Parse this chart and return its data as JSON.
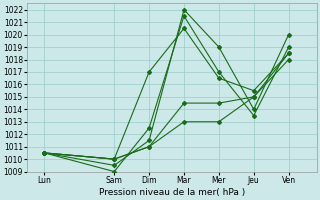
{
  "xlabel": "Pression niveau de la mer( hPa )",
  "background_color": "#cce8e8",
  "grid_color": "#99cccc",
  "line_color": "#1a6b1a",
  "x_labels": [
    "Lun",
    "Sam",
    "Dim",
    "Mar",
    "Mer",
    "Jeu",
    "Ven"
  ],
  "x_positions": [
    0,
    2,
    3,
    4,
    5,
    6,
    7
  ],
  "ylim": [
    1009,
    1022.5
  ],
  "yticks": [
    1009,
    1010,
    1011,
    1012,
    1013,
    1014,
    1015,
    1016,
    1017,
    1018,
    1019,
    1020,
    1021,
    1022
  ],
  "series": {
    "line1": [
      1010.5,
      1009.5,
      1011.5,
      1022.0,
      1019.0,
      1014.0,
      1020.0
    ],
    "line2": [
      1010.5,
      1009.0,
      1012.5,
      1021.5,
      1017.0,
      1013.5,
      1019.0
    ],
    "line3": [
      1010.5,
      1010.0,
      1017.0,
      1020.5,
      1016.5,
      1015.5,
      1018.5
    ],
    "line4": [
      1010.5,
      1010.0,
      1011.0,
      1014.5,
      1014.5,
      1015.0,
      1018.5
    ],
    "line5": [
      1010.5,
      1010.0,
      1011.0,
      1013.0,
      1013.0,
      1015.0,
      1018.0
    ]
  },
  "xlim": [
    -0.5,
    7.8
  ],
  "figsize": [
    3.2,
    2.0
  ],
  "dpi": 100
}
